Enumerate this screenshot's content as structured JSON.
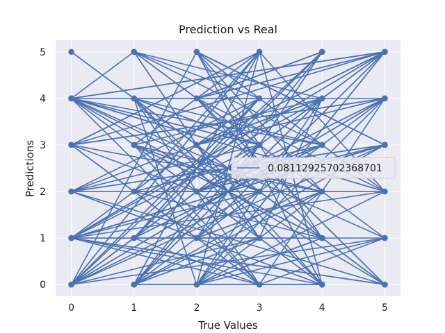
{
  "chart_data": {
    "type": "line",
    "title": "Prediction vs Real",
    "xlabel": "True Values",
    "ylabel": "Predictions",
    "xlim": [
      -0.25,
      5.25
    ],
    "ylim": [
      -0.25,
      5.25
    ],
    "xticks": [
      0,
      1,
      2,
      3,
      4,
      5
    ],
    "yticks": [
      0,
      1,
      2,
      3,
      4,
      5
    ],
    "grid": true,
    "legend_position": "center-right",
    "colors": {
      "series": "#4c72b0",
      "background": "#eaeaf2",
      "grid": "#ffffff"
    },
    "series": [
      {
        "name": "0.08112925702368701",
        "marker": "circle",
        "points": [
          [
            0,
            4
          ],
          [
            1,
            5
          ],
          [
            2,
            4
          ],
          [
            5,
            2
          ],
          [
            3,
            5
          ],
          [
            4,
            0
          ],
          [
            0,
            1
          ],
          [
            5,
            5
          ],
          [
            2,
            0
          ],
          [
            1,
            4
          ],
          [
            3,
            3
          ],
          [
            4,
            5
          ],
          [
            0,
            0
          ],
          [
            2,
            5
          ],
          [
            5,
            3
          ],
          [
            1,
            0
          ],
          [
            3,
            1
          ],
          [
            4,
            4
          ],
          [
            0,
            2
          ],
          [
            2,
            1
          ],
          [
            5,
            1
          ],
          [
            3,
            0
          ],
          [
            1,
            3
          ],
          [
            4,
            2
          ],
          [
            0,
            3
          ],
          [
            2,
            2
          ],
          [
            5,
            4
          ],
          [
            3,
            4
          ],
          [
            1,
            1
          ],
          [
            4,
            1
          ],
          [
            0,
            5
          ],
          [
            2,
            3
          ],
          [
            5,
            0
          ],
          [
            3,
            2
          ],
          [
            1,
            2
          ],
          [
            4,
            3
          ],
          [
            0,
            4
          ],
          [
            5,
            5
          ],
          [
            2,
            0
          ],
          [
            3,
            5
          ],
          [
            1,
            0
          ],
          [
            4,
            4
          ],
          [
            0,
            1
          ],
          [
            5,
            3
          ],
          [
            2,
            5
          ],
          [
            4,
            0
          ],
          [
            1,
            4
          ],
          [
            3,
            3
          ],
          [
            0,
            0
          ],
          [
            5,
            5
          ],
          [
            2,
            4
          ],
          [
            4,
            1
          ],
          [
            1,
            2
          ],
          [
            3,
            0
          ],
          [
            5,
            4
          ],
          [
            0,
            3
          ],
          [
            2,
            1
          ],
          [
            4,
            5
          ],
          [
            1,
            1
          ],
          [
            3,
            4
          ],
          [
            0,
            4
          ],
          [
            5,
            2
          ],
          [
            2,
            0
          ],
          [
            4,
            2
          ],
          [
            1,
            5
          ],
          [
            3,
            1
          ],
          [
            0,
            1
          ],
          [
            5,
            0
          ],
          [
            2,
            3
          ],
          [
            4,
            4
          ],
          [
            1,
            3
          ],
          [
            3,
            5
          ],
          [
            0,
            0
          ],
          [
            5,
            4
          ],
          [
            2,
            2
          ],
          [
            4,
            0
          ],
          [
            1,
            0
          ],
          [
            3,
            2
          ],
          [
            0,
            2
          ],
          [
            5,
            3
          ],
          [
            2,
            5
          ],
          [
            4,
            3
          ],
          [
            1,
            4
          ],
          [
            3,
            3
          ],
          [
            0,
            1
          ],
          [
            5,
            5
          ],
          [
            2,
            1
          ],
          [
            4,
            2
          ],
          [
            1,
            2
          ],
          [
            3,
            4
          ],
          [
            0,
            0
          ],
          [
            5,
            1
          ],
          [
            2,
            4
          ],
          [
            4,
            5
          ],
          [
            1,
            1
          ],
          [
            3,
            0
          ],
          [
            0,
            4
          ],
          [
            5,
            5
          ],
          [
            2,
            3
          ],
          [
            4,
            0
          ],
          [
            1,
            3
          ],
          [
            3,
            5
          ],
          [
            0,
            3
          ],
          [
            5,
            4
          ],
          [
            2,
            0
          ],
          [
            4,
            4
          ],
          [
            1,
            0
          ],
          [
            3,
            1
          ],
          [
            0,
            1
          ],
          [
            5,
            2
          ],
          [
            2,
            5
          ],
          [
            4,
            1
          ],
          [
            1,
            4
          ],
          [
            3,
            2
          ],
          [
            0,
            0
          ],
          [
            5,
            3
          ],
          [
            2,
            2
          ],
          [
            4,
            3
          ],
          [
            1,
            5
          ],
          [
            3,
            4
          ],
          [
            0,
            2
          ],
          [
            5,
            0
          ],
          [
            2,
            4
          ],
          [
            4,
            5
          ],
          [
            1,
            1
          ],
          [
            3,
            3
          ],
          [
            0,
            4
          ],
          [
            5,
            5
          ],
          [
            2,
            1
          ],
          [
            4,
            2
          ],
          [
            1,
            2
          ],
          [
            3,
            0
          ],
          [
            0,
            1
          ],
          [
            5,
            3
          ],
          [
            2,
            5
          ],
          [
            4,
            0
          ],
          [
            1,
            0
          ],
          [
            3,
            5
          ],
          [
            0,
            3
          ],
          [
            5,
            4
          ],
          [
            2,
            3
          ],
          [
            4,
            4
          ],
          [
            1,
            4
          ],
          [
            3,
            1
          ],
          [
            0,
            0
          ],
          [
            5,
            5
          ],
          [
            2,
            0
          ],
          [
            4,
            1
          ],
          [
            1,
            3
          ],
          [
            3,
            2
          ],
          [
            0,
            4
          ],
          [
            5,
            2
          ],
          [
            2,
            2
          ],
          [
            4,
            3
          ],
          [
            1,
            1
          ],
          [
            3,
            4
          ],
          [
            0,
            1
          ],
          [
            5,
            0
          ],
          [
            2,
            4
          ],
          [
            4,
            5
          ],
          [
            1,
            0
          ],
          [
            3,
            3
          ],
          [
            0,
            2
          ],
          [
            5,
            3
          ],
          [
            2,
            5
          ],
          [
            4,
            2
          ],
          [
            1,
            2
          ],
          [
            3,
            5
          ],
          [
            0,
            0
          ],
          [
            5,
            4
          ],
          [
            2,
            1
          ],
          [
            4,
            0
          ],
          [
            1,
            4
          ],
          [
            3,
            0
          ],
          [
            0,
            3
          ],
          [
            5,
            5
          ],
          [
            2,
            3
          ],
          [
            4,
            4
          ],
          [
            1,
            5
          ],
          [
            3,
            1
          ],
          [
            0,
            4
          ],
          [
            5,
            1
          ],
          [
            2,
            0
          ],
          [
            4,
            1
          ],
          [
            1,
            3
          ],
          [
            3,
            2
          ],
          [
            0,
            1
          ],
          [
            5,
            3
          ],
          [
            2,
            2
          ],
          [
            4,
            3
          ],
          [
            1,
            1
          ],
          [
            3,
            4
          ],
          [
            0,
            0
          ],
          [
            5,
            5
          ],
          [
            2,
            4
          ],
          [
            4,
            2
          ],
          [
            1,
            0
          ],
          [
            3,
            3
          ],
          [
            0,
            4
          ],
          [
            5,
            0
          ]
        ]
      }
    ]
  }
}
